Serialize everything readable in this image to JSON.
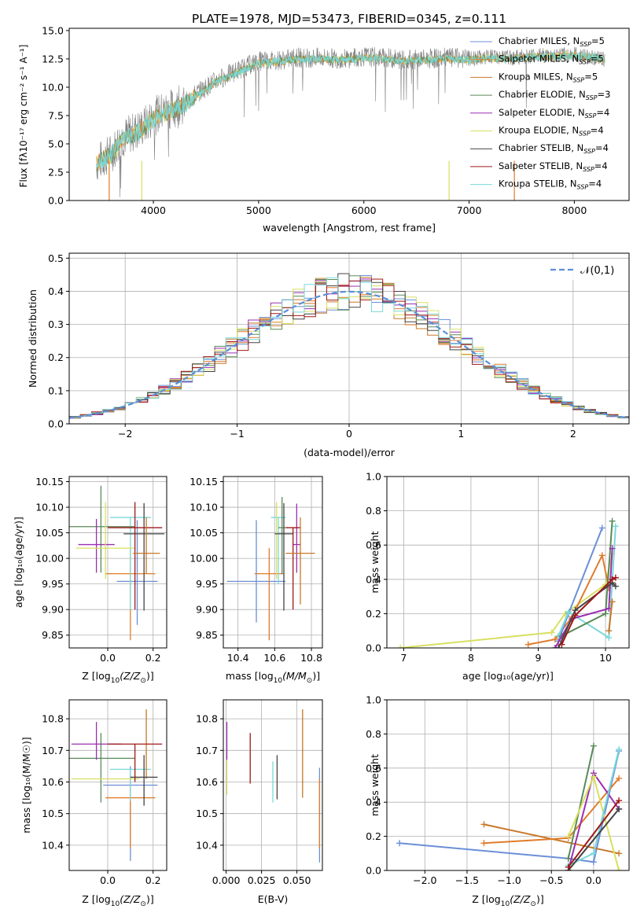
{
  "figure_title": "PLATE=1978, MJD=53473, FIBERID=0345, z=0.111",
  "colors": {
    "chabrier_miles": "#6b8fd8",
    "salpeter_miles": "#e07c2a",
    "kroupa_miles": "#c8782a",
    "chabrier_elodie": "#5a8a5a",
    "salpeter_elodie": "#9a2fb0",
    "kroupa_elodie": "#d8e060",
    "chabrier_stelib": "#444444",
    "salpeter_stelib": "#a01818",
    "kroupa_stelib": "#7ad8d8",
    "data_gray": "#808080",
    "normal_curve": "#5b8fd8"
  },
  "legend_entries": [
    {
      "key": "chabrier_miles",
      "text": "Chabrier MILES, N",
      "sub": "SSP",
      "tail": "=5"
    },
    {
      "key": "salpeter_miles",
      "text": "Salpeter MILES, N",
      "sub": "SSP",
      "tail": "=5"
    },
    {
      "key": "kroupa_miles",
      "text": "Kroupa MILES, N",
      "sub": "SSP",
      "tail": "=5"
    },
    {
      "key": "chabrier_elodie",
      "text": "Chabrier ELODIE, N",
      "sub": "SSP",
      "tail": "=3"
    },
    {
      "key": "salpeter_elodie",
      "text": "Salpeter ELODIE, N",
      "sub": "SSP",
      "tail": "=4"
    },
    {
      "key": "kroupa_elodie",
      "text": "Kroupa ELODIE, N",
      "sub": "SSP",
      "tail": "=4"
    },
    {
      "key": "chabrier_stelib",
      "text": "Chabrier STELIB, N",
      "sub": "SSP",
      "tail": "=4"
    },
    {
      "key": "salpeter_stelib",
      "text": "Salpeter STELIB, N",
      "sub": "SSP",
      "tail": "=4"
    },
    {
      "key": "kroupa_stelib",
      "text": "Kroupa STELIB, N",
      "sub": "SSP",
      "tail": "=4"
    }
  ],
  "chart_data": [
    {
      "id": "spectrum",
      "type": "line",
      "xlabel": "wavelength [Angstrom, rest frame]",
      "ylabel": "Flux [fλ10⁻¹⁷ erg cm⁻² s⁻¹ A⁻¹]",
      "xlim": [
        3200,
        8520
      ],
      "ylim": [
        0,
        15.2
      ],
      "xticks": [
        4000,
        5000,
        6000,
        7000,
        8000
      ],
      "yticks": [
        0.0,
        2.5,
        5.0,
        7.5,
        10.0,
        12.5,
        15.0
      ],
      "data_spectrum": {
        "x": [
          3460,
          3600,
          3700,
          3800,
          3900,
          4000,
          4100,
          4200,
          4300,
          4400,
          4500,
          4600,
          4800,
          5000,
          5200,
          5400,
          5600,
          5800,
          6000,
          6200,
          6400,
          6600,
          6800,
          7000,
          7200,
          7400,
          7600,
          7800,
          8000,
          8200,
          8290
        ],
        "y": [
          3.3,
          4.2,
          5.5,
          6.0,
          6.5,
          7.4,
          7.9,
          8.2,
          8.6,
          9.4,
          10.0,
          10.6,
          11.5,
          12.3,
          12.4,
          12.6,
          12.6,
          12.5,
          12.7,
          12.6,
          12.4,
          12.5,
          12.6,
          12.5,
          12.7,
          12.6,
          12.8,
          12.8,
          12.9,
          12.6,
          12.4
        ]
      },
      "model_spectrum": {
        "x": [
          3460,
          3600,
          3700,
          3800,
          3900,
          4000,
          4100,
          4200,
          4300,
          4400,
          4500,
          4600,
          4800,
          5000,
          5200,
          5400,
          5600,
          5800,
          6000,
          6200,
          6400,
          6600,
          6800,
          7000,
          7200,
          7400,
          7600,
          7800,
          8000,
          8200,
          8290
        ],
        "y": [
          3.3,
          4.0,
          5.3,
          5.8,
          6.4,
          7.2,
          7.7,
          8.1,
          8.5,
          9.2,
          9.8,
          10.5,
          11.3,
          12.1,
          12.3,
          12.5,
          12.5,
          12.4,
          12.6,
          12.5,
          12.3,
          12.4,
          12.5,
          12.4,
          12.6,
          12.5,
          12.7,
          12.7,
          12.8,
          12.6,
          12.4
        ]
      },
      "dips": [
        {
          "x": 3580,
          "key": "salpeter_miles"
        },
        {
          "x": 3890,
          "key": "kroupa_elodie"
        },
        {
          "x": 6810,
          "key": "kroupa_elodie"
        },
        {
          "x": 7430,
          "key": "salpeter_miles"
        }
      ]
    },
    {
      "id": "residual-histogram",
      "type": "histogram",
      "xlabel": "(data-model)/error",
      "ylabel": "Normed distribution",
      "xlim": [
        -2.5,
        2.5
      ],
      "ylim": [
        0,
        0.515
      ],
      "xticks": [
        -2,
        -1,
        0,
        1,
        2
      ],
      "yticks": [
        0.0,
        0.1,
        0.2,
        0.3,
        0.4,
        0.5
      ],
      "bin_width": 0.1,
      "legend_label": "𝒩(0,1)"
    },
    {
      "id": "age-vs-z",
      "type": "errorbar",
      "xlabel_main": "Z [log",
      "xlabel_sub": "10",
      "xlabel_tail": "(Z/Z",
      "xlabel_end": ")]",
      "ylabel": "age  [log₁₀(age/yr)]",
      "xlim": [
        -0.17,
        0.26
      ],
      "ylim": [
        9.825,
        10.16
      ],
      "xticks": [
        0.0,
        0.2
      ],
      "yticks": [
        9.85,
        9.9,
        9.95,
        10.0,
        10.05,
        10.1,
        10.15
      ],
      "points": [
        {
          "key": "chabrier_miles",
          "x": 0.13,
          "xerr": 0.09,
          "y": 9.955,
          "yerr_lo": 0.085,
          "yerr_hi": 0.12
        },
        {
          "key": "salpeter_miles",
          "x": 0.1,
          "xerr": 0.11,
          "y": 9.97,
          "yerr_lo": 0.13,
          "yerr_hi": 0.05
        },
        {
          "key": "kroupa_stelib",
          "x": 0.1,
          "xerr": 0.09,
          "y": 10.08,
          "yerr_lo": 0.18,
          "yerr_hi": 0.0
        },
        {
          "key": "chabrier_elodie",
          "x": -0.03,
          "xerr": 0.15,
          "y": 10.062,
          "yerr_lo": 0.09,
          "yerr_hi": 0.08
        },
        {
          "key": "salpeter_elodie",
          "x": -0.05,
          "xerr": 0.08,
          "y": 10.027,
          "yerr_lo": 0.055,
          "yerr_hi": 0.05
        },
        {
          "key": "kroupa_elodie",
          "x": -0.01,
          "xerr": 0.13,
          "y": 10.02,
          "yerr_lo": 0.06,
          "yerr_hi": 0.09
        },
        {
          "key": "chabrier_stelib",
          "x": 0.16,
          "xerr": 0.09,
          "y": 10.048,
          "yerr_lo": 0.15,
          "yerr_hi": 0.06
        },
        {
          "key": "salpeter_stelib",
          "x": 0.12,
          "xerr": 0.12,
          "y": 10.06,
          "yerr_lo": 0.16,
          "yerr_hi": 0.05
        },
        {
          "key": "kroupa_miles",
          "x": 0.17,
          "xerr": 0.06,
          "y": 10.01,
          "yerr_lo": 0.04,
          "yerr_hi": 0.07
        }
      ]
    },
    {
      "id": "age-vs-mass",
      "type": "errorbar",
      "xlabel_main": "mass [log",
      "xlabel_sub": "10",
      "xlabel_tail": "(M/M",
      "xlabel_end": ")]",
      "ylabel": "",
      "xlim": [
        10.32,
        10.86
      ],
      "ylim": [
        9.825,
        10.16
      ],
      "xticks": [
        10.4,
        10.6,
        10.8
      ],
      "yticks": [
        9.85,
        9.9,
        9.95,
        10.0,
        10.05,
        10.1,
        10.15
      ],
      "points": [
        {
          "key": "chabrier_miles",
          "x": 10.5,
          "xerr": 0.16,
          "y": 9.955,
          "yerr_lo": 0.08,
          "yerr_hi": 0.12
        },
        {
          "key": "salpeter_miles",
          "x": 10.57,
          "xerr": 0.08,
          "y": 9.97,
          "yerr_lo": 0.13,
          "yerr_hi": 0.05
        },
        {
          "key": "kroupa_stelib",
          "x": 10.62,
          "xerr": 0.04,
          "y": 10.08,
          "yerr_lo": 0.13,
          "yerr_hi": 0.0
        },
        {
          "key": "chabrier_elodie",
          "x": 10.64,
          "xerr": 0.02,
          "y": 10.06,
          "yerr_lo": 0.09,
          "yerr_hi": 0.06
        },
        {
          "key": "salpeter_elodie",
          "x": 10.72,
          "xerr": 0.02,
          "y": 10.027,
          "yerr_lo": 0.055,
          "yerr_hi": 0.08
        },
        {
          "key": "kroupa_elodie",
          "x": 10.61,
          "xerr": 0.0,
          "y": 10.02,
          "yerr_lo": 0.06,
          "yerr_hi": 0.09
        },
        {
          "key": "chabrier_stelib",
          "x": 10.65,
          "xerr": 0.05,
          "y": 10.048,
          "yerr_lo": 0.15,
          "yerr_hi": 0.06
        },
        {
          "key": "salpeter_stelib",
          "x": 10.7,
          "xerr": 0.04,
          "y": 10.06,
          "yerr_lo": 0.16,
          "yerr_hi": 0.0
        },
        {
          "key": "kroupa_miles",
          "x": 10.74,
          "xerr": 0.08,
          "y": 10.01,
          "yerr_lo": 0.1,
          "yerr_hi": 0.07
        }
      ]
    },
    {
      "id": "mass-weight-vs-age",
      "type": "line",
      "xlabel": "age  [log₁₀(age/yr)]",
      "ylabel": "mass weight",
      "xlim": [
        6.75,
        10.35
      ],
      "ylim": [
        0,
        1.0
      ],
      "xticks": [
        7,
        8,
        9,
        10
      ],
      "yticks": [
        0.0,
        0.2,
        0.4,
        0.6,
        0.8,
        1.0
      ],
      "series": [
        {
          "key": "kroupa_elodie",
          "x": [
            6.95,
            9.2,
            9.4,
            10.0,
            10.1
          ],
          "y": [
            0.0,
            0.09,
            0.2,
            0.37,
            0.55
          ]
        },
        {
          "key": "salpeter_miles",
          "x": [
            8.85,
            9.25,
            9.5,
            9.95,
            10.05
          ],
          "y": [
            0.02,
            0.05,
            0.18,
            0.54,
            0.35
          ]
        },
        {
          "key": "chabrier_miles",
          "x": [
            9.3,
            9.45,
            9.95
          ],
          "y": [
            0.04,
            0.2,
            0.7
          ]
        },
        {
          "key": "kroupa_stelib",
          "x": [
            9.3,
            9.45,
            10.05,
            10.15
          ],
          "y": [
            0.07,
            0.21,
            0.06,
            0.71
          ]
        },
        {
          "key": "chabrier_elodie",
          "x": [
            9.35,
            10.0,
            10.1
          ],
          "y": [
            0.07,
            0.2,
            0.74
          ]
        },
        {
          "key": "salpeter_elodie",
          "x": [
            9.25,
            9.5,
            10.05,
            10.1
          ],
          "y": [
            0.0,
            0.17,
            0.23,
            0.58
          ]
        },
        {
          "key": "kroupa_miles",
          "x": [
            10.05,
            10.1
          ],
          "y": [
            0.1,
            0.27
          ]
        },
        {
          "key": "chabrier_stelib",
          "x": [
            9.3,
            9.55,
            10.1,
            10.15
          ],
          "y": [
            0.0,
            0.22,
            0.38,
            0.36
          ]
        },
        {
          "key": "salpeter_stelib",
          "x": [
            9.35,
            9.55,
            10.1,
            10.15
          ],
          "y": [
            0.02,
            0.19,
            0.4,
            0.41
          ]
        }
      ]
    },
    {
      "id": "mass-vs-z",
      "type": "errorbar",
      "xlabel_main": "Z [log",
      "xlabel_sub": "10",
      "xlabel_tail": "(Z/Z",
      "xlabel_end": ")]",
      "ylabel": "mass [log₁₀(M/M☉)]",
      "xlim": [
        -0.17,
        0.26
      ],
      "ylim": [
        10.32,
        10.86
      ],
      "xticks": [
        0.0,
        0.2
      ],
      "yticks": [
        10.4,
        10.5,
        10.6,
        10.7,
        10.8
      ],
      "points": [
        {
          "key": "chabrier_miles",
          "x": 0.1,
          "xerr": 0.12,
          "y": 10.59,
          "yerr_lo": 0.24,
          "yerr_hi": 0.06
        },
        {
          "key": "salpeter_miles",
          "x": 0.1,
          "xerr": 0.11,
          "y": 10.55,
          "yerr_lo": 0.16,
          "yerr_hi": 0.07
        },
        {
          "key": "kroupa_stelib",
          "x": 0.1,
          "xerr": 0.09,
          "y": 10.64,
          "yerr_lo": 0.1,
          "yerr_hi": 0.0
        },
        {
          "key": "chabrier_elodie",
          "x": -0.03,
          "xerr": 0.15,
          "y": 10.675,
          "yerr_lo": 0.14,
          "yerr_hi": 0.08
        },
        {
          "key": "salpeter_elodie",
          "x": -0.05,
          "xerr": 0.11,
          "y": 10.72,
          "yerr_lo": 0.05,
          "yerr_hi": 0.07
        },
        {
          "key": "kroupa_elodie",
          "x": -0.01,
          "xerr": 0.15,
          "y": 10.61,
          "yerr_lo": 0.0,
          "yerr_hi": 0.0
        },
        {
          "key": "kroupa_miles",
          "x": 0.17,
          "xerr": 0.0,
          "y": 10.72,
          "yerr_lo": 0.11,
          "yerr_hi": 0.11
        },
        {
          "key": "chabrier_stelib",
          "x": 0.16,
          "xerr": 0.06,
          "y": 10.615,
          "yerr_lo": 0.09,
          "yerr_hi": 0.07
        },
        {
          "key": "salpeter_stelib",
          "x": 0.12,
          "xerr": 0.12,
          "y": 10.72,
          "yerr_lo": 0.12,
          "yerr_hi": 0.0
        }
      ]
    },
    {
      "id": "mass-vs-ebv",
      "type": "errorbar",
      "xlabel": "E(B-V)",
      "ylabel": "",
      "xlim": [
        -0.002,
        0.068
      ],
      "ylim": [
        10.32,
        10.86
      ],
      "xticks": [
        0.0,
        0.025,
        0.05
      ],
      "xtick_labels": [
        "0.000",
        "0.025",
        "0.050"
      ],
      "yticks": [
        10.4,
        10.5,
        10.6,
        10.7,
        10.8
      ],
      "points": [
        {
          "key": "salpeter_elodie",
          "x": 0.0005,
          "xerr": 0,
          "y": 10.72,
          "yerr_lo": 0.05,
          "yerr_hi": 0.07
        },
        {
          "key": "kroupa_elodie",
          "x": 0.0005,
          "xerr": 0,
          "y": 10.61,
          "yerr_lo": 0.05,
          "yerr_hi": 0.06
        },
        {
          "key": "salpeter_stelib",
          "x": 0.017,
          "xerr": 0,
          "y": 10.675,
          "yerr_lo": 0.08,
          "yerr_hi": 0.08
        },
        {
          "key": "kroupa_stelib",
          "x": 0.033,
          "xerr": 0,
          "y": 10.6,
          "yerr_lo": 0.065,
          "yerr_hi": 0.065
        },
        {
          "key": "chabrier_stelib",
          "x": 0.036,
          "xerr": 0,
          "y": 10.615,
          "yerr_lo": 0.07,
          "yerr_hi": 0.07
        },
        {
          "key": "kroupa_miles",
          "x": 0.054,
          "xerr": 0,
          "y": 10.69,
          "yerr_lo": 0.14,
          "yerr_hi": 0.14
        },
        {
          "key": "chabrier_miles",
          "x": 0.066,
          "xerr": 0,
          "y": 10.495,
          "yerr_lo": 0.15,
          "yerr_hi": 0.15
        },
        {
          "key": "salpeter_miles",
          "x": 0.066,
          "xerr": 0,
          "y": 10.5,
          "yerr_lo": 0.11,
          "yerr_hi": 0.11
        }
      ]
    },
    {
      "id": "mass-weight-vs-z",
      "type": "line",
      "xlabel_main": "Z [log",
      "xlabel_sub": "10",
      "xlabel_tail": "(Z/Z",
      "xlabel_end": ")]",
      "ylabel": "mass weight",
      "xlim": [
        -2.45,
        0.42
      ],
      "ylim": [
        0,
        1.0
      ],
      "xticks": [
        -2.0,
        -1.5,
        -1.0,
        -0.5,
        0.0
      ],
      "yticks": [
        0.0,
        0.2,
        0.4,
        0.6,
        0.8,
        1.0
      ],
      "series": [
        {
          "key": "chabrier_miles",
          "x": [
            -2.3,
            -0.3,
            0.0,
            0.3
          ],
          "y": [
            0.16,
            0.07,
            0.05,
            0.7
          ]
        },
        {
          "key": "kroupa_miles",
          "x": [
            -1.3,
            0.3
          ],
          "y": [
            0.27,
            0.1
          ]
        },
        {
          "key": "salpeter_miles",
          "x": [
            -1.3,
            -0.3,
            0.3
          ],
          "y": [
            0.16,
            0.19,
            0.54
          ]
        },
        {
          "key": "chabrier_elodie",
          "x": [
            -0.3,
            0.0
          ],
          "y": [
            0.07,
            0.73
          ]
        },
        {
          "key": "salpeter_elodie",
          "x": [
            -0.3,
            0.0,
            0.3
          ],
          "y": [
            0.0,
            0.57,
            0.36
          ]
        },
        {
          "key": "kroupa_elodie",
          "x": [
            -0.3,
            0.0,
            0.3
          ],
          "y": [
            0.2,
            0.55,
            0.0
          ]
        },
        {
          "key": "kroupa_stelib",
          "x": [
            -0.3,
            0.0,
            0.3
          ],
          "y": [
            0.03,
            0.1,
            0.71
          ]
        },
        {
          "key": "chabrier_stelib",
          "x": [
            -0.3,
            0.3
          ],
          "y": [
            0.0,
            0.36
          ]
        },
        {
          "key": "salpeter_stelib",
          "x": [
            -0.3,
            0.3
          ],
          "y": [
            0.02,
            0.41
          ]
        }
      ]
    }
  ]
}
